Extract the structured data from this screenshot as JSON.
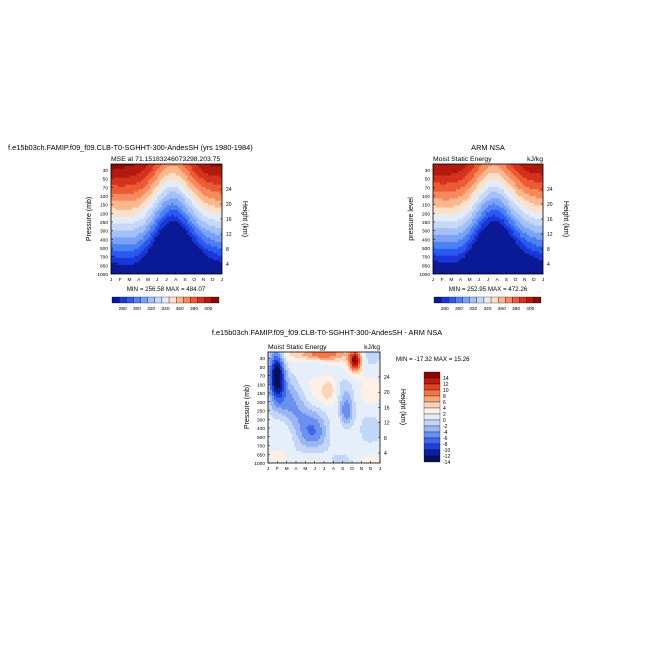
{
  "chart_data": [
    {
      "type": "heatmap",
      "title": "f.e15b03ch.FAMIP.f09_f09.CLB-T0-SGHHT-300-AndesSH (yrs 1980-1984)",
      "subtitle_left": "MSE at 71.15183246073298,203.75",
      "xlabel": "",
      "ylabel": "Pressure (mb)",
      "ylabel_right": "Height (km)",
      "x_ticks": [
        "J",
        "F",
        "M",
        "A",
        "M",
        "J",
        "J",
        "A",
        "S",
        "O",
        "N",
        "D",
        "J"
      ],
      "y_ticks": [
        "30",
        "50",
        "70",
        "100",
        "150",
        "200",
        "250",
        "300",
        "400",
        "500",
        "700",
        "850",
        "1000"
      ],
      "y_ticks_right": [
        "24",
        "20",
        "16",
        "12",
        "8",
        "4"
      ],
      "min_max_text": "MIN = 256.58   MAX = 484.07",
      "colorbar_labels": [
        "280",
        "300",
        "320",
        "340",
        "360",
        "380",
        "400"
      ]
    },
    {
      "type": "heatmap",
      "title": "ARM NSA",
      "subtitle_left": "Moist Static Energy",
      "subtitle_right": "kJ/kg",
      "xlabel": "",
      "ylabel": "pressure level",
      "ylabel_right": "Height (km)",
      "x_ticks": [
        "J",
        "F",
        "M",
        "A",
        "M",
        "J",
        "J",
        "A",
        "S",
        "O",
        "N",
        "D",
        "J"
      ],
      "y_ticks": [
        "30",
        "50",
        "70",
        "100",
        "150",
        "200",
        "250",
        "300",
        "400",
        "500",
        "700",
        "850",
        "1000"
      ],
      "y_ticks_right": [
        "24",
        "20",
        "16",
        "12",
        "8",
        "4"
      ],
      "min_max_text": "MIN = 252.95   MAX = 472.26",
      "colorbar_labels": [
        "280",
        "300",
        "320",
        "340",
        "360",
        "380",
        "400"
      ]
    },
    {
      "type": "heatmap",
      "title": "f.e15b03ch.FAMIP.f09_f09.CLB-T0-SGHHT-300-AndesSH - ARM NSA",
      "subtitle_left": "Moist Static Energy",
      "subtitle_right": "kJ/kg",
      "xlabel": "",
      "ylabel": "Pressure (mb)",
      "ylabel_right": "Height (km)",
      "x_ticks": [
        "J",
        "F",
        "M",
        "A",
        "M",
        "J",
        "J",
        "A",
        "S",
        "O",
        "N",
        "D",
        "J"
      ],
      "y_ticks": [
        "30",
        "50",
        "70",
        "100",
        "150",
        "200",
        "250",
        "300",
        "400",
        "500",
        "700",
        "850",
        "1000"
      ],
      "y_ticks_right": [
        "24",
        "20",
        "16",
        "12",
        "8",
        "4"
      ],
      "min_max_text": "MIN = -17.32   MAX =  15.26",
      "colorbar_labels": [
        "14",
        "12",
        "10",
        "8",
        "6",
        "4",
        "2",
        "0",
        "-2",
        "-4",
        "-6",
        "-8",
        "-10",
        "-12",
        "-14"
      ]
    }
  ]
}
